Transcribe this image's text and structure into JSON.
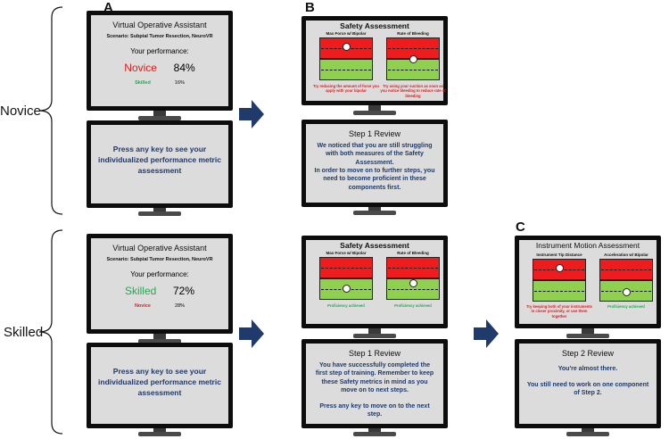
{
  "rows": {
    "novice": "Novice",
    "skilled": "Skilled"
  },
  "panels": {
    "a": "A",
    "b": "B",
    "c": "C"
  },
  "assistant": {
    "title": "Virtual Operative Assistant",
    "scenario": "Scenario: Subpial Tumor Resection, NeuroVR",
    "perf_label": "Your performance:"
  },
  "novice_assistant": {
    "main_label": "Novice",
    "main_pct": "84%",
    "alt_label": "Skilled",
    "alt_pct": "16%",
    "main_color": "#e21b1b",
    "alt_color": "#22a94f"
  },
  "skilled_assistant": {
    "main_label": "Skilled",
    "main_pct": "72%",
    "alt_label": "Novice",
    "alt_pct": "28%",
    "main_color": "#22a94f",
    "alt_color": "#e21b1b"
  },
  "press_key": "Press any key to see your individualized performance metric assessment",
  "safety": {
    "title": "Safety Assessment",
    "metric1": "Max Force w/ Bipolar",
    "metric2": "Rate of Bleeding",
    "novice_note1": "Try reducing the amount of force you apply with your bipolar",
    "novice_note2": "Try using your suction as soon as you notice bleeding to reduce rate of bleeding",
    "skilled_note": "Proficiency achieved",
    "novice_dot1_level": 0.85,
    "novice_dot2_level": 0.5,
    "skilled_dot1_level": 0.2,
    "skilled_dot2_level": 0.35
  },
  "review1_novice": {
    "title": "Step 1 Review",
    "p1": "We noticed that you are still struggling with both measures of the Safety Assessment.",
    "p2": "In order to move on to further steps, you need to become proficient in these components first."
  },
  "review1_skilled": {
    "title": "Step 1 Review",
    "p1": "You have successfully completed the first step of training. Remember to keep these Safety metrics in mind as you move on to next steps.",
    "p2": "Press any key to move on to the next step."
  },
  "motion": {
    "title": "Instrument Motion Assessment",
    "metric1": "Instrument Tip Distance",
    "metric2": "Acceleration w/ Bipolar",
    "note1": "Try keeping both of your instruments in closer proximity, or use them together",
    "note2": "Proficiency achieved",
    "dot1_level": 0.85,
    "dot2_level": 0.15
  },
  "review2": {
    "title": "Step 2 Review",
    "p1": "You're almost there.",
    "p2": "You still need to work on one component of Step 2."
  },
  "colors": {
    "navy": "#1f3a6b",
    "red": "#ee1c1c",
    "green": "#8fd14f",
    "arrow": "#1f3a6b"
  }
}
